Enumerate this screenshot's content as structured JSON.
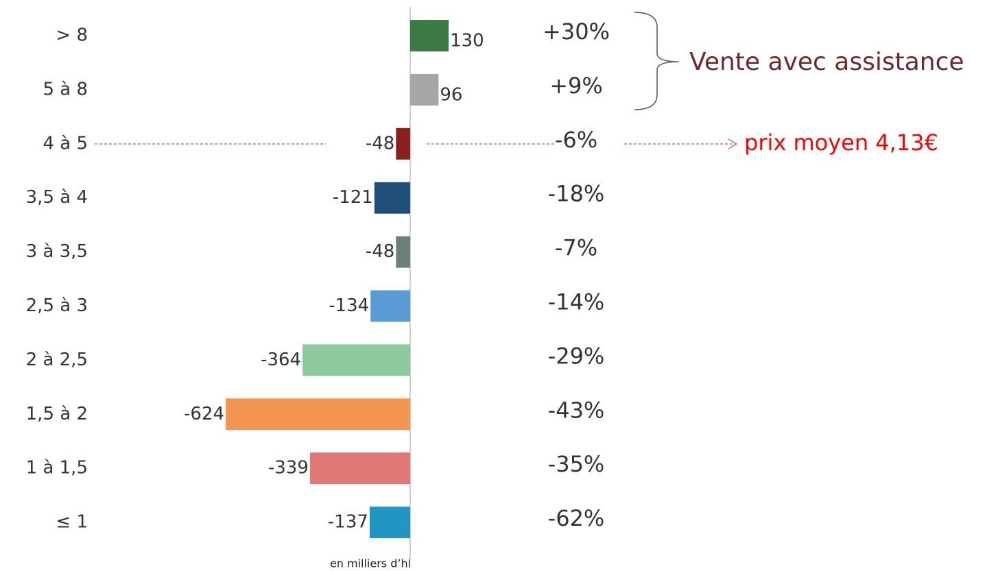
{
  "chart_data": {
    "type": "bar",
    "orientation": "horizontal",
    "categories": [
      "> 8",
      "5 à 8",
      "4 à 5",
      "3,5 à 4",
      "3 à 3,5",
      "2,5 à 3",
      "2 à 2,5",
      "1,5 à 2",
      "1 à 1,5",
      "≤ 1"
    ],
    "values": [
      130,
      96,
      -48,
      -121,
      -48,
      -134,
      -364,
      -624,
      -339,
      -137
    ],
    "colors": [
      "#3b7a45",
      "#a6a6a6",
      "#8b1f1f",
      "#1f4e79",
      "#6b7f7b",
      "#5b9bd5",
      "#8dc99b",
      "#f39550",
      "#e07676",
      "#2196c4"
    ],
    "changes": {
      "values": [
        30,
        9,
        -6,
        -18,
        -7,
        -14,
        -29,
        -43,
        -35,
        -62
      ],
      "value_labels": [
        "+30%",
        "+9%",
        "-6%",
        "-18%",
        "-7%",
        "-14%",
        "-29%",
        "-43%",
        "-35%",
        "-62%"
      ]
    },
    "annotations": [
      "Vente avec assistance",
      "prix moyen 4,13€"
    ],
    "footnote": "en milliers d’hl"
  }
}
